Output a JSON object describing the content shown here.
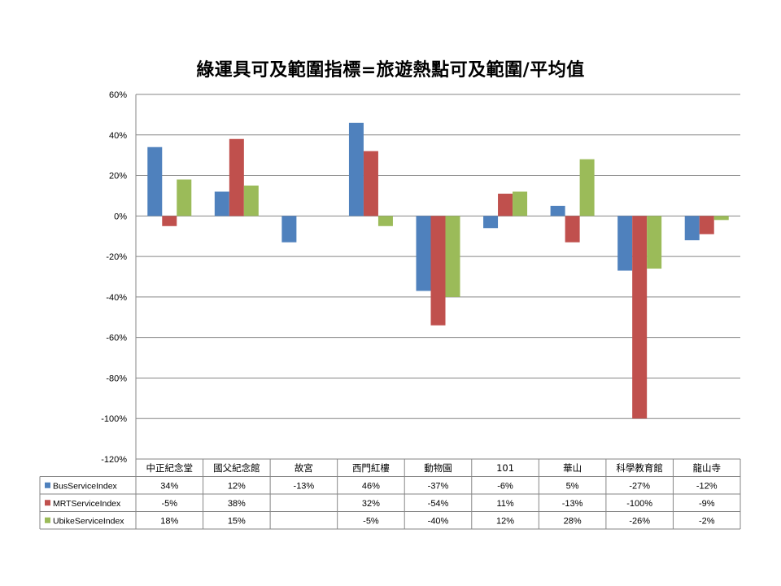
{
  "chart_data": {
    "type": "bar",
    "title": "綠運具可及範圍指標=旅遊熱點可及範圍/平均值",
    "categories": [
      "中正紀念堂",
      "國父紀念館",
      "故宮",
      "西門紅樓",
      "動物園",
      "101",
      "華山",
      "科學教育館",
      "龍山寺"
    ],
    "ylim": [
      -120,
      60
    ],
    "yticks": [
      60,
      40,
      20,
      0,
      -20,
      -40,
      -60,
      -80,
      -100,
      -120
    ],
    "y_unit": "%",
    "grid": true,
    "legend": "data-table-left",
    "series": [
      {
        "name": "BusServiceIndex",
        "color": "#4f81bd",
        "values": [
          34,
          12,
          -13,
          46,
          -37,
          -6,
          5,
          -27,
          -12
        ],
        "labels": [
          "34%",
          "12%",
          "-13%",
          "46%",
          "-37%",
          "-6%",
          "5%",
          "-27%",
          "-12%"
        ]
      },
      {
        "name": "MRTServiceIndex",
        "color": "#c0504d",
        "values": [
          -5,
          38,
          null,
          32,
          -54,
          11,
          -13,
          -100,
          -9
        ],
        "labels": [
          "-5%",
          "38%",
          "",
          "32%",
          "-54%",
          "11%",
          "-13%",
          "-100%",
          "-9%"
        ]
      },
      {
        "name": "UbikeServiceIndex",
        "color": "#9bbb59",
        "values": [
          18,
          15,
          null,
          -5,
          -40,
          12,
          28,
          -26,
          -2
        ],
        "labels": [
          "18%",
          "15%",
          "",
          "-5%",
          "-40%",
          "12%",
          "28%",
          "-26%",
          "-2%"
        ]
      }
    ]
  }
}
